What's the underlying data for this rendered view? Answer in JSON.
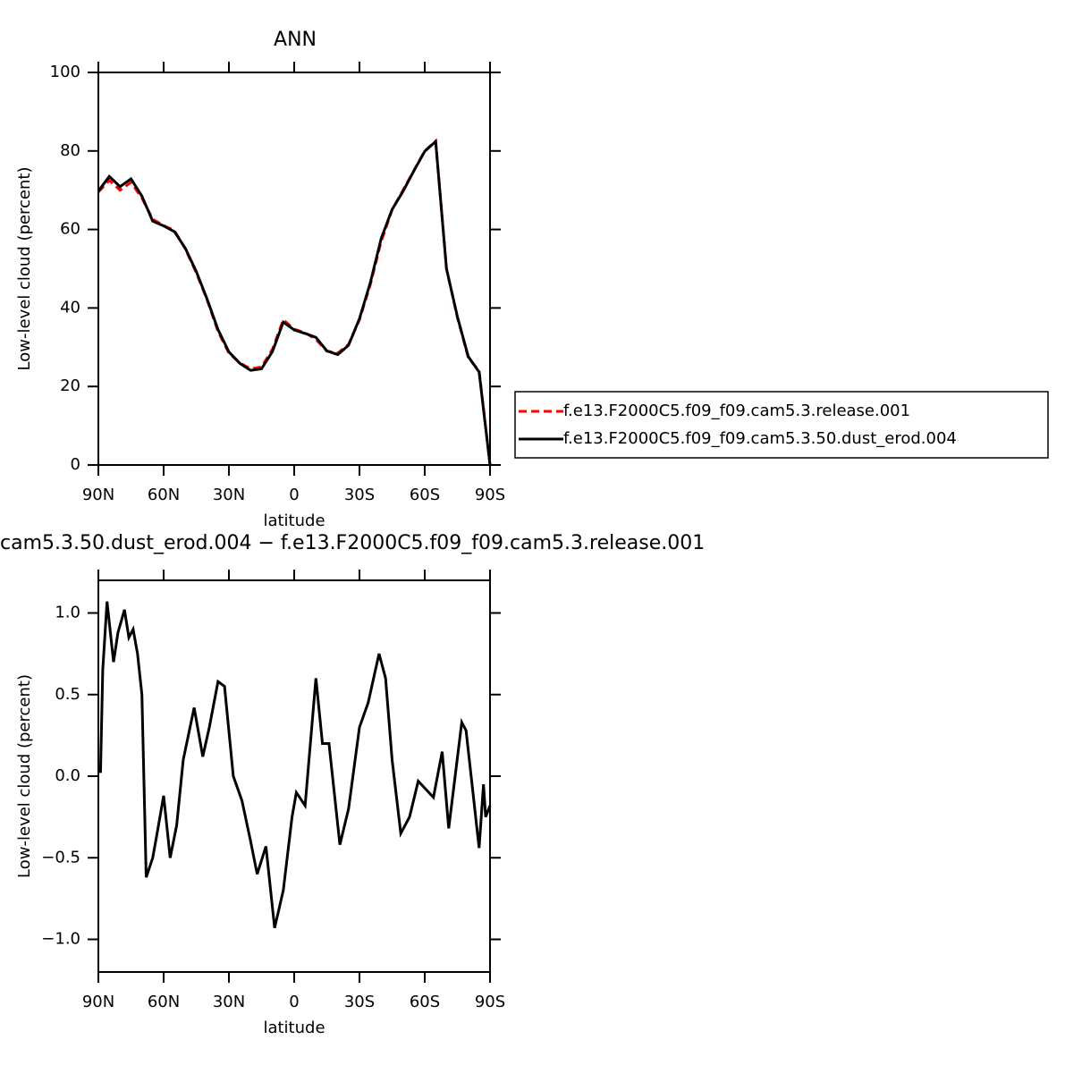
{
  "chart_data": [
    {
      "type": "line",
      "title": "ANN",
      "ylabel": "Low-level cloud (percent)",
      "xlabel": "latitude",
      "x": [
        90,
        85,
        80,
        75,
        70,
        65,
        60,
        55,
        50,
        45,
        40,
        35,
        30,
        25,
        20,
        15,
        10,
        5,
        0,
        -5,
        -10,
        -15,
        -20,
        -25,
        -30,
        -35,
        -40,
        -45,
        -50,
        -55,
        -60,
        -65,
        -70,
        -75,
        -80,
        -85,
        -90
      ],
      "series": [
        {
          "name": "f.e13.F2000C5.f09_f09.cam5.3.release.001",
          "color": "#ff0000",
          "dashed": true,
          "values": [
            69.5,
            72.5,
            70,
            72,
            68,
            62.6,
            61,
            59.7,
            55,
            49,
            42,
            34,
            28.5,
            26,
            24.5,
            25,
            29.5,
            37,
            34.6,
            33.7,
            32,
            29,
            28.5,
            30.7,
            37,
            46,
            57,
            65,
            70,
            75,
            80,
            82.5,
            50,
            37.6,
            27.3,
            24,
            0
          ]
        },
        {
          "name": "f.e13.F2000C5.f09_f09.cam5.3.50.dust_erod.004",
          "color": "#000000",
          "dashed": false,
          "values": [
            69.8,
            73.5,
            70.9,
            72.9,
            68.5,
            62.1,
            60.9,
            59.4,
            55.2,
            49.3,
            42.2,
            34.5,
            28.8,
            25.9,
            24.1,
            24.5,
            28.9,
            36.4,
            34.4,
            33.5,
            32.5,
            29.1,
            28.1,
            30.5,
            37.3,
            46.5,
            57.7,
            65.1,
            69.7,
            74.9,
            79.9,
            82.4,
            50,
            37.8,
            27.6,
            23.7,
            0
          ]
        }
      ],
      "xlim": [
        90,
        -90
      ],
      "xticks": [
        {
          "value": 90,
          "label": "90N"
        },
        {
          "value": 60,
          "label": "60N"
        },
        {
          "value": 30,
          "label": "30N"
        },
        0,
        {
          "value": -30,
          "label": "30S"
        },
        {
          "value": -60,
          "label": "60S"
        },
        {
          "value": -90,
          "label": "90S"
        }
      ],
      "ylim": [
        0,
        100
      ],
      "yticks": [
        0,
        20,
        40,
        60,
        80,
        100
      ],
      "legend": "right"
    },
    {
      "type": "line",
      "title": "cam5.3.50.dust_erod.004 − f.e13.F2000C5.f09_f09.cam5.3.release.001",
      "ylabel": "Low-level cloud (percent)",
      "xlabel": "latitude",
      "x": [
        89,
        88,
        86,
        83,
        81,
        78,
        76,
        74,
        72,
        70,
        68,
        65,
        63,
        60,
        57,
        54,
        51,
        46,
        42,
        39,
        35,
        32,
        28,
        24,
        20,
        17,
        13,
        9,
        5,
        1,
        -1,
        -5,
        -10,
        -13,
        -16,
        -21,
        -25,
        -30,
        -34,
        -39,
        -42,
        -45,
        -49,
        -53,
        -57,
        -64,
        -68,
        -71,
        -77,
        -79,
        -85,
        -87,
        -88,
        -90
      ],
      "values": [
        0.02,
        0.65,
        1.07,
        0.7,
        0.88,
        1.02,
        0.85,
        0.9,
        0.75,
        0.5,
        -0.62,
        -0.5,
        -0.35,
        -0.12,
        -0.5,
        -0.3,
        0.1,
        0.42,
        0.12,
        0.3,
        0.58,
        0.55,
        0.0,
        -0.15,
        -0.4,
        -0.6,
        -0.43,
        -0.93,
        -0.7,
        -0.25,
        -0.1,
        -0.18,
        0.6,
        0.2,
        0.2,
        -0.42,
        -0.2,
        0.3,
        0.45,
        0.75,
        0.6,
        0.1,
        -0.35,
        -0.25,
        -0.03,
        -0.13,
        0.15,
        -0.32,
        0.33,
        0.28,
        -0.44,
        -0.05,
        -0.25,
        -0.18
      ],
      "color": "#000000",
      "xlim": [
        90,
        -90
      ],
      "xticks": [
        {
          "value": 90,
          "label": "90N"
        },
        {
          "value": 60,
          "label": "60N"
        },
        {
          "value": 30,
          "label": "30N"
        },
        0,
        {
          "value": -30,
          "label": "30S"
        },
        {
          "value": -60,
          "label": "60S"
        },
        {
          "value": -90,
          "label": "90S"
        }
      ],
      "ylim": [
        -1.2,
        1.2
      ],
      "yticks": [
        {
          "value": -1,
          "label": "−1.0"
        },
        {
          "value": -0.5,
          "label": "−0.5"
        },
        {
          "value": 0,
          "label": "0.0"
        },
        {
          "value": 0.5,
          "label": "0.5"
        },
        {
          "value": 1,
          "label": "1.0"
        }
      ]
    }
  ]
}
